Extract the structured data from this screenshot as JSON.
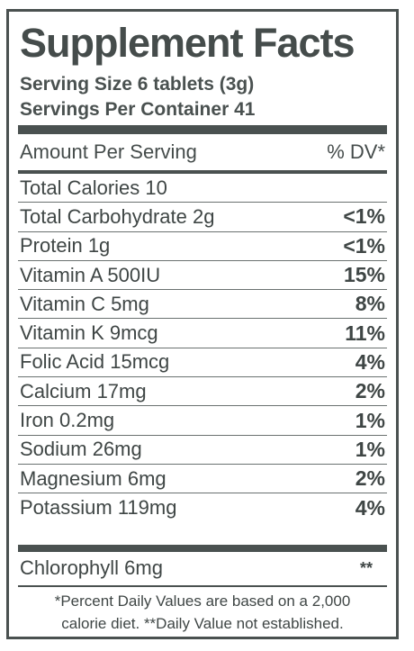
{
  "title": "Supplement Facts",
  "serving_size": "Serving Size 6 tablets (3g)",
  "servings_per_container": "Servings Per Container 41",
  "header": {
    "left": "Amount Per Serving",
    "right": "% DV*"
  },
  "rows": [
    {
      "name": "Total Calories 10",
      "dv": ""
    },
    {
      "name": "Total Carbohydrate 2g",
      "dv": "<1%"
    },
    {
      "name": "Protein 1g",
      "dv": "<1%"
    },
    {
      "name": "Vitamin A 500IU",
      "dv": "15%"
    },
    {
      "name": "Vitamin C 5mg",
      "dv": "8%"
    },
    {
      "name": "Vitamin K 9mcg",
      "dv": "11%"
    },
    {
      "name": "Folic Acid 15mcg",
      "dv": "4%"
    },
    {
      "name": "Calcium 17mg",
      "dv": "2%"
    },
    {
      "name": "Iron 0.2mg",
      "dv": "1%"
    },
    {
      "name": "Sodium 26mg",
      "dv": "1%"
    },
    {
      "name": "Magnesium 6mg",
      "dv": "2%"
    },
    {
      "name": "Potassium 119mg",
      "dv": "4%"
    }
  ],
  "chlorophyll": {
    "name": "Chlorophyll 6mg",
    "dv": "**"
  },
  "footnote_line1": "*Percent Daily Values are based on a 2,000",
  "footnote_line2": "calorie diet. **Daily Value not established.",
  "colors": {
    "ink": "#4a5150",
    "background": "#ffffff"
  }
}
